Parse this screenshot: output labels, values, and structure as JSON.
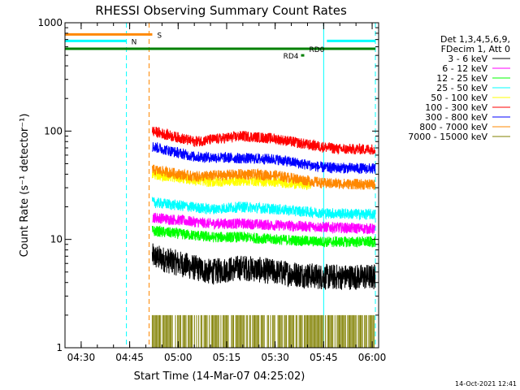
{
  "chart_data": {
    "type": "line",
    "title": "RHESSI Observing Summary Count Rates",
    "xlabel": "Start Time (14-Mar-07 04:25:02)",
    "ylabel": "Count Rate (s⁻¹ detector⁻¹)",
    "x_range": [
      "04:25",
      "06:02"
    ],
    "x_ticks": [
      "04:30",
      "04:45",
      "05:00",
      "05:15",
      "05:30",
      "05:45",
      "06:00"
    ],
    "y_scale": "log",
    "ylim": [
      1,
      1000
    ],
    "y_ticks": [
      "1",
      "10",
      "100",
      "1000"
    ],
    "legend_header": [
      "Det 1,3,4,5,6,9,",
      "FDecim 1, Att 0"
    ],
    "series": [
      {
        "name": "3 - 6 keV",
        "color": "#000000",
        "start": "04:52",
        "end": "06:01",
        "points": [
          [
            "04:52",
            7
          ],
          [
            "05:10",
            5
          ],
          [
            "05:20",
            5.5
          ],
          [
            "05:30",
            5
          ],
          [
            "05:45",
            4.5
          ],
          [
            "06:00",
            4.5
          ]
        ]
      },
      {
        "name": "6 - 12 keV",
        "color": "#ff00ff",
        "start": "04:52",
        "end": "06:01",
        "points": [
          [
            "04:52",
            16
          ],
          [
            "05:10",
            14
          ],
          [
            "05:20",
            14
          ],
          [
            "05:30",
            13.5
          ],
          [
            "05:45",
            13
          ],
          [
            "06:00",
            12.5
          ]
        ]
      },
      {
        "name": "12 - 25 keV",
        "color": "#00ff00",
        "start": "04:52",
        "end": "06:01",
        "points": [
          [
            "04:52",
            12
          ],
          [
            "05:10",
            10.5
          ],
          [
            "05:20",
            10.5
          ],
          [
            "05:30",
            10
          ],
          [
            "05:45",
            9.5
          ],
          [
            "06:00",
            9.5
          ]
        ]
      },
      {
        "name": "25 - 50 keV",
        "color": "#00ffff",
        "start": "04:52",
        "end": "06:01",
        "points": [
          [
            "04:52",
            22
          ],
          [
            "05:10",
            19
          ],
          [
            "05:20",
            20
          ],
          [
            "05:30",
            19
          ],
          [
            "05:45",
            17.5
          ],
          [
            "06:00",
            17
          ]
        ]
      },
      {
        "name": "50 - 100 keV",
        "color": "#ffff00",
        "start": "04:52",
        "end": "05:41",
        "points": [
          [
            "04:52",
            40
          ],
          [
            "05:10",
            34
          ],
          [
            "05:20",
            35
          ],
          [
            "05:30",
            34
          ],
          [
            "05:40",
            32
          ]
        ]
      },
      {
        "name": "100 - 300 keV",
        "color": "#ff0000",
        "start": "04:52",
        "end": "06:01",
        "points": [
          [
            "04:52",
            100
          ],
          [
            "05:05",
            80
          ],
          [
            "05:20",
            90
          ],
          [
            "05:30",
            85
          ],
          [
            "05:40",
            75
          ],
          [
            "05:50",
            68
          ],
          [
            "06:00",
            68
          ]
        ]
      },
      {
        "name": "300 - 800 keV",
        "color": "#0000ff",
        "start": "04:52",
        "end": "06:01",
        "points": [
          [
            "04:52",
            72
          ],
          [
            "05:05",
            58
          ],
          [
            "05:20",
            56
          ],
          [
            "05:30",
            55
          ],
          [
            "05:45",
            46
          ],
          [
            "06:00",
            45
          ]
        ]
      },
      {
        "name": "800 - 7000 keV",
        "color": "#ff8800",
        "start": "04:52",
        "end": "06:01",
        "points": [
          [
            "04:52",
            44
          ],
          [
            "05:05",
            38
          ],
          [
            "05:20",
            40
          ],
          [
            "05:30",
            39
          ],
          [
            "05:45",
            33
          ],
          [
            "06:00",
            32
          ]
        ]
      },
      {
        "name": "7000 - 15000 keV",
        "color": "#808000",
        "start": "04:52",
        "end": "06:01",
        "points": [
          [
            "04:52",
            2
          ],
          [
            "06:00",
            2
          ]
        ]
      }
    ],
    "flags": [
      {
        "label": "S",
        "color": "#ff8800",
        "value": 780,
        "start": "04:25",
        "end": "04:52",
        "label_at": "04:53"
      },
      {
        "label": "N",
        "color": "#00ffff",
        "value": 680,
        "start": "04:25",
        "end": "04:44",
        "label_at": "04:45"
      },
      {
        "label": "",
        "color": "#00ffff",
        "value": 680,
        "start": "05:46",
        "end": "06:01",
        "label_at": ""
      },
      {
        "label": "RD0",
        "color": "#008000",
        "value": 575,
        "start": "04:25",
        "end": "06:01",
        "label_at": "05:40"
      },
      {
        "label": "RD4",
        "color": "#008000",
        "value": 500,
        "start": "05:38",
        "end": "05:39",
        "label_at": "05:32"
      }
    ],
    "vlines": [
      {
        "time": "04:44",
        "color": "#00ffff",
        "style": "dashed"
      },
      {
        "time": "04:51",
        "color": "#ff8800",
        "style": "dashed"
      },
      {
        "time": "05:45",
        "color": "#00ffff",
        "style": "solid"
      },
      {
        "time": "06:01",
        "color": "#00ffff",
        "style": "dashed"
      }
    ],
    "grid": false,
    "legend_placement": "right"
  },
  "footer": {
    "timestamp": "14-Oct-2021 12:41"
  }
}
